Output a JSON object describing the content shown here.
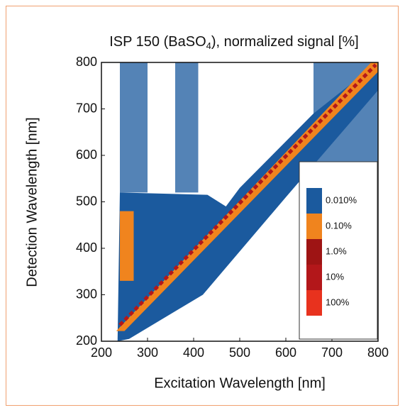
{
  "chart_data": {
    "type": "contour",
    "title": {
      "main": "ISP 150 (BaSO",
      "sub": "4",
      "end": "), normalized signal [%]"
    },
    "xlabel": "Excitation Wavelength [nm]",
    "ylabel": "Detection Wavelength [nm]",
    "xlim": [
      200,
      800
    ],
    "ylim": [
      200,
      800
    ],
    "xticks": [
      200,
      300,
      400,
      500,
      600,
      700,
      800
    ],
    "yticks": [
      200,
      300,
      400,
      500,
      600,
      700,
      800
    ],
    "levels": [
      {
        "value": 0.01,
        "label": "0.010%",
        "color": "#1b5a9e"
      },
      {
        "value": 0.1,
        "label": "0.10%",
        "color": "#f0841e"
      },
      {
        "value": 1,
        "label": "1.0%",
        "color": "#9e1414"
      },
      {
        "value": 10,
        "label": "10%",
        "color": "#b3171a"
      },
      {
        "value": 100,
        "label": "100%",
        "color": "#e8321e"
      }
    ],
    "regions": [
      {
        "level": 0,
        "x": [
          240,
          300,
          300,
          240
        ],
        "y": [
          520,
          520,
          800,
          800
        ]
      },
      {
        "level": 0,
        "x": [
          360,
          410,
          410,
          360
        ],
        "y": [
          520,
          520,
          800,
          800
        ]
      },
      {
        "level": 0,
        "x": [
          660,
          800,
          800,
          660
        ],
        "y": [
          560,
          560,
          800,
          800
        ]
      },
      {
        "level": 0,
        "x": [
          235,
          260,
          420,
          600,
          800,
          800,
          660,
          500,
          470,
          430,
          240
        ],
        "y": [
          200,
          205,
          300,
          510,
          740,
          800,
          690,
          530,
          490,
          515,
          520
        ]
      },
      {
        "level": 1,
        "x": [
          240,
          270,
          270,
          240
        ],
        "y": [
          330,
          330,
          480,
          480
        ]
      },
      {
        "level": 1,
        "x": [
          232,
          250,
          800,
          800,
          785
        ],
        "y": [
          222,
          222,
          780,
          800,
          800
        ]
      }
    ],
    "ridge": {
      "level": 3,
      "x": [
        240,
        795
      ],
      "y": [
        235,
        795
      ]
    }
  }
}
